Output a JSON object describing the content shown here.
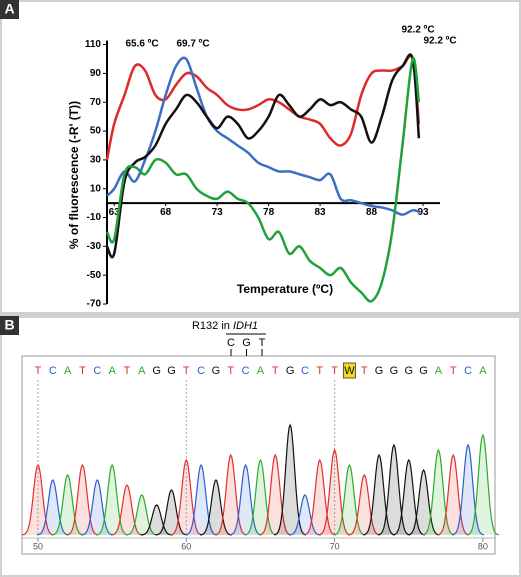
{
  "chart_data": [
    {
      "type": "line",
      "panel": "A",
      "xlabel": "Temperature (ºC)",
      "ylabel": "% of fluorescence (-R' (T))",
      "annotations": [
        "65.6 ºC",
        "69.7 ºC",
        "92.2 ºC",
        "92.2 ºC"
      ],
      "x": [
        62.3,
        63,
        64,
        65,
        66,
        67,
        68,
        69,
        70,
        71,
        72,
        73,
        74,
        75,
        76,
        77,
        78,
        79,
        80,
        81,
        82,
        83,
        84,
        85,
        86,
        87,
        88,
        89,
        90,
        91,
        92,
        92.6
      ],
      "series": [
        {
          "color": "#e02a2a",
          "values": [
            30,
            55,
            75,
            95,
            92,
            75,
            72,
            82,
            90,
            88,
            80,
            75,
            68,
            65,
            65,
            68,
            72,
            70,
            65,
            60,
            58,
            55,
            45,
            40,
            48,
            75,
            90,
            92,
            92,
            95,
            100,
            55
          ]
        },
        {
          "color": "#3a6fc4",
          "values": [
            5,
            10,
            22,
            15,
            30,
            50,
            75,
            95,
            100,
            80,
            60,
            50,
            45,
            40,
            35,
            28,
            25,
            22,
            22,
            20,
            18,
            16,
            20,
            3,
            2,
            0,
            -2,
            -3,
            -5,
            -8,
            -5,
            -6
          ]
        },
        {
          "color": "#111111",
          "values": [
            -30,
            -35,
            15,
            28,
            32,
            40,
            55,
            65,
            75,
            70,
            60,
            52,
            60,
            55,
            45,
            50,
            60,
            75,
            68,
            60,
            65,
            72,
            68,
            70,
            65,
            60,
            42,
            60,
            85,
            95,
            100,
            45
          ]
        },
        {
          "color": "#22a03a",
          "values": [
            -20,
            -25,
            20,
            25,
            20,
            30,
            28,
            20,
            20,
            10,
            5,
            3,
            8,
            3,
            0,
            -10,
            -25,
            -20,
            -35,
            -30,
            -40,
            -45,
            -50,
            -45,
            -55,
            -62,
            -68,
            -55,
            -20,
            40,
            100,
            70
          ]
        }
      ],
      "xlim": [
        62.3,
        93
      ],
      "xticks": [
        63,
        68,
        73,
        78,
        83,
        88,
        93
      ],
      "ylim": [
        -70,
        110
      ],
      "yticks": [
        -70,
        -50,
        -30,
        -10,
        10,
        30,
        50,
        70,
        90,
        110
      ]
    },
    {
      "type": "chromatogram",
      "panel": "B",
      "codon_label": "R132 in ",
      "codon_gene": "IDH1",
      "codon_bases": [
        "C",
        "G",
        "T"
      ],
      "bases": [
        "T",
        "C",
        "A",
        "T",
        "C",
        "A",
        "T",
        "A",
        "G",
        "G",
        "T",
        "C",
        "G",
        "T",
        "C",
        "A",
        "T",
        "G",
        "C",
        "T",
        "T",
        "W",
        "T",
        "G",
        "G",
        "G",
        "G",
        "A",
        "T",
        "C",
        "A"
      ],
      "peak_heights": [
        70,
        55,
        60,
        70,
        55,
        70,
        50,
        40,
        30,
        45,
        75,
        70,
        55,
        80,
        70,
        75,
        80,
        110,
        40,
        75,
        85,
        70,
        60,
        80,
        90,
        75,
        65,
        85,
        80,
        90,
        100
      ],
      "base_colors": {
        "T": "#e0302a",
        "C": "#2a5fd0",
        "A": "#2aac2a",
        "G": "#111111",
        "W": "#2aac2a"
      },
      "highlight_index": 21,
      "highlight_color": "#f2dc1a",
      "position_ticks": [
        50,
        60,
        70,
        80
      ]
    }
  ]
}
